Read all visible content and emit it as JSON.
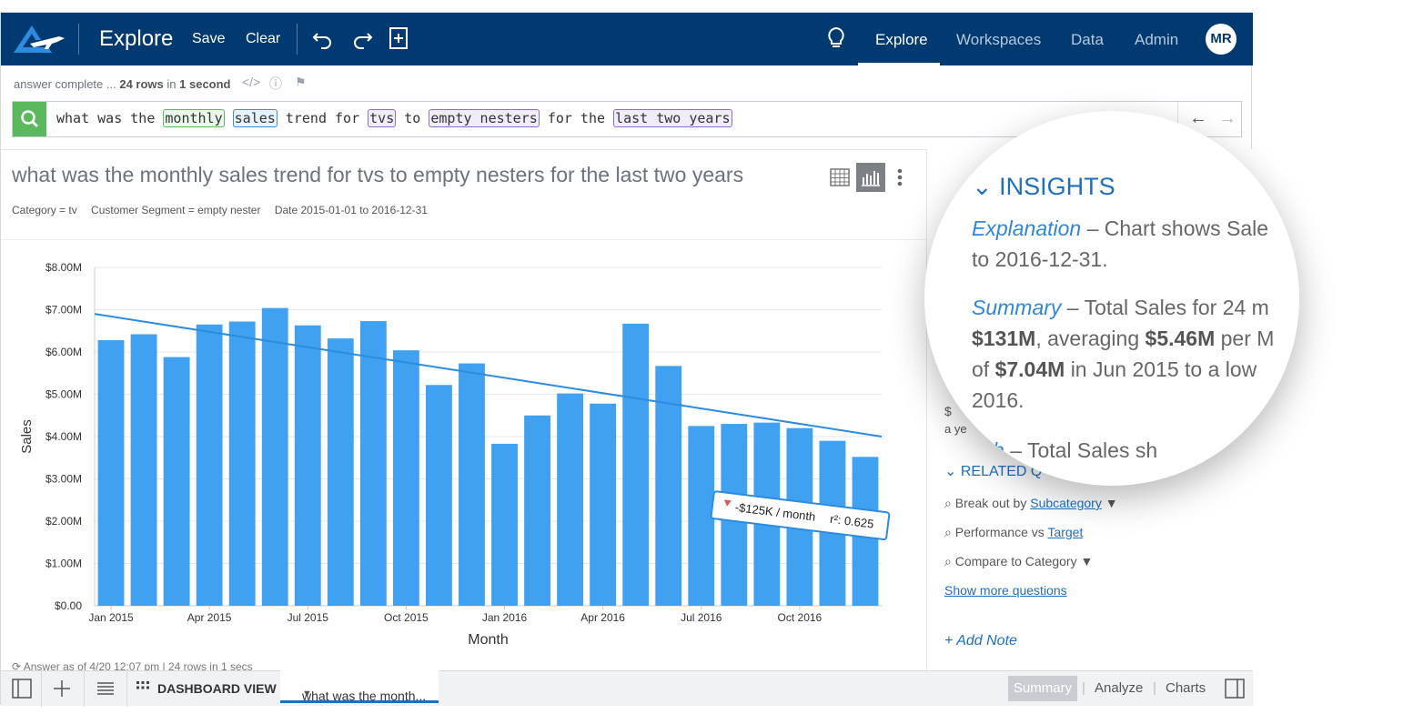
{
  "colors": {
    "nav_bg": "#003a70",
    "accent": "#1e6fc0",
    "bar": "#3fa1ef",
    "trend": "#2d8be0",
    "search_go": "#5cb85c"
  },
  "nav": {
    "title": "Explore",
    "save": "Save",
    "clear": "Clear",
    "links": [
      "Explore",
      "Workspaces",
      "Data",
      "Admin"
    ],
    "active_link": "Explore",
    "avatar": "MR",
    "icons": [
      "logo-icon",
      "undo-icon",
      "redo-icon",
      "new-answer-icon",
      "lightbulb-icon"
    ]
  },
  "status": {
    "prefix": "answer complete ...",
    "rows": "24 rows",
    "mid": "in",
    "time": "1 second"
  },
  "search": {
    "tokens": [
      {
        "text": "what was the",
        "style": "plain"
      },
      {
        "text": "monthly",
        "style": "green"
      },
      {
        "text": "sales",
        "style": "blue"
      },
      {
        "text": "trend for",
        "style": "plain"
      },
      {
        "text": "tvs",
        "style": "purple"
      },
      {
        "text": "to",
        "style": "plain"
      },
      {
        "text": "empty nesters",
        "style": "purple"
      },
      {
        "text": "for the",
        "style": "plain"
      },
      {
        "text": "last two years",
        "style": "purple"
      }
    ]
  },
  "answer": {
    "title": "what was the monthly sales trend for tvs to empty nesters for the last two years",
    "filters": [
      "Category = tv",
      "Customer Segment = empty nester",
      "Date 2015-01-01 to 2016-12-31"
    ],
    "footer_time": "Answer as of 4/20 12:07 pm",
    "footer_rows": "| 24 rows in 1 secs"
  },
  "chart_data": {
    "type": "bar",
    "xlabel": "Month",
    "ylabel": "Sales",
    "ylim": [
      0,
      8000000
    ],
    "y_ticks": [
      "$0.00",
      "$1.00M",
      "$2.00M",
      "$3.00M",
      "$4.00M",
      "$5.00M",
      "$6.00M",
      "$7.00M",
      "$8.00M"
    ],
    "x_ticks": [
      "Jan 2015",
      "Apr 2015",
      "Jul 2015",
      "Oct 2015",
      "Jan 2016",
      "Apr 2016",
      "Jul 2016",
      "Oct 2016"
    ],
    "categories": [
      "2015-01",
      "2015-02",
      "2015-03",
      "2015-04",
      "2015-05",
      "2015-06",
      "2015-07",
      "2015-08",
      "2015-09",
      "2015-10",
      "2015-11",
      "2015-12",
      "2016-01",
      "2016-02",
      "2016-03",
      "2016-04",
      "2016-05",
      "2016-06",
      "2016-07",
      "2016-08",
      "2016-09",
      "2016-10",
      "2016-11",
      "2016-12"
    ],
    "values": [
      6.28,
      6.42,
      5.88,
      6.65,
      6.72,
      7.04,
      6.63,
      6.32,
      6.73,
      6.04,
      5.22,
      5.73,
      3.83,
      4.5,
      5.02,
      4.78,
      6.67,
      5.67,
      4.25,
      4.3,
      4.33,
      4.2,
      3.9,
      3.52
    ],
    "value_scale": 1000000,
    "grid": true,
    "trendline": {
      "start": 6.9,
      "end": 4.0,
      "label": "-$125K / month",
      "r2_label": "r²: 0.625"
    }
  },
  "insights": {
    "heading": "INSIGHTS",
    "explanation_label": "Explanation",
    "explanation_text": "– Chart shows Sale",
    "explanation_text2": "to 2016-12-31.",
    "summary_label": "Summary",
    "summary_text": "– Total Sales for 24 m",
    "summary_val1": "$131M",
    "summary_mid": ", averaging",
    "summary_val2": "$5.46M",
    "summary_end": "per M",
    "summary_line3a": "of",
    "summary_val3": "$7.04M",
    "summary_line3b": "in Jun 2015 to a low",
    "summary_line4": "2016.",
    "growth_label": "wth",
    "growth_text": "– Total Sales sh"
  },
  "related": {
    "heading": "RELATED Q",
    "q1_text": "Break out by",
    "q1_link": "Subcategory",
    "q2_text": "Performance vs",
    "q2_link": "Target",
    "q3_text": "Compare to Category",
    "show_more": "Show more questions",
    "add_note": "+ Add Note",
    "partial1": "$",
    "partial2": "a ye"
  },
  "bottom": {
    "dashboard": "DASHBOARD VIEW",
    "tab": "what was the month...",
    "summary": "Summary",
    "analyze": "Analyze",
    "charts": "Charts"
  }
}
